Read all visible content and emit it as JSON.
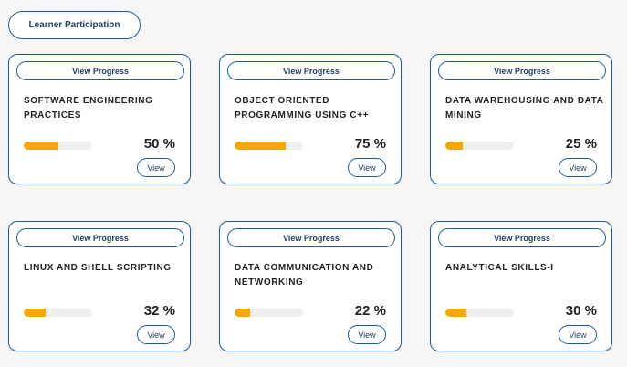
{
  "header": {
    "participation_label": "Learner Participation"
  },
  "progress_color": "#f5a800",
  "border_color": "#1f5c99",
  "courses": [
    {
      "view_progress_label": "View Progress",
      "title": "SOFTWARE ENGINEERING PRACTICES",
      "progress": 50,
      "percent_text": "50 %",
      "view_label": "View"
    },
    {
      "view_progress_label": "View Progress",
      "title": "OBJECT ORIENTED PROGRAMMING USING C++",
      "progress": 75,
      "percent_text": "75 %",
      "view_label": "View"
    },
    {
      "view_progress_label": "View Progress",
      "title": "DATA WAREHOUSING AND DATA MINING",
      "progress": 25,
      "percent_text": "25 %",
      "view_label": "View"
    },
    {
      "view_progress_label": "View Progress",
      "title": "LINUX AND SHELL SCRIPTING",
      "progress": 32,
      "percent_text": "32 %",
      "view_label": "View"
    },
    {
      "view_progress_label": "View Progress",
      "title": "DATA COMMUNICATION AND NETWORKING",
      "progress": 22,
      "percent_text": "22 %",
      "view_label": "View"
    },
    {
      "view_progress_label": "View Progress",
      "title": "ANALYTICAL SKILLS-I",
      "progress": 30,
      "percent_text": "30 %",
      "view_label": "View"
    }
  ]
}
